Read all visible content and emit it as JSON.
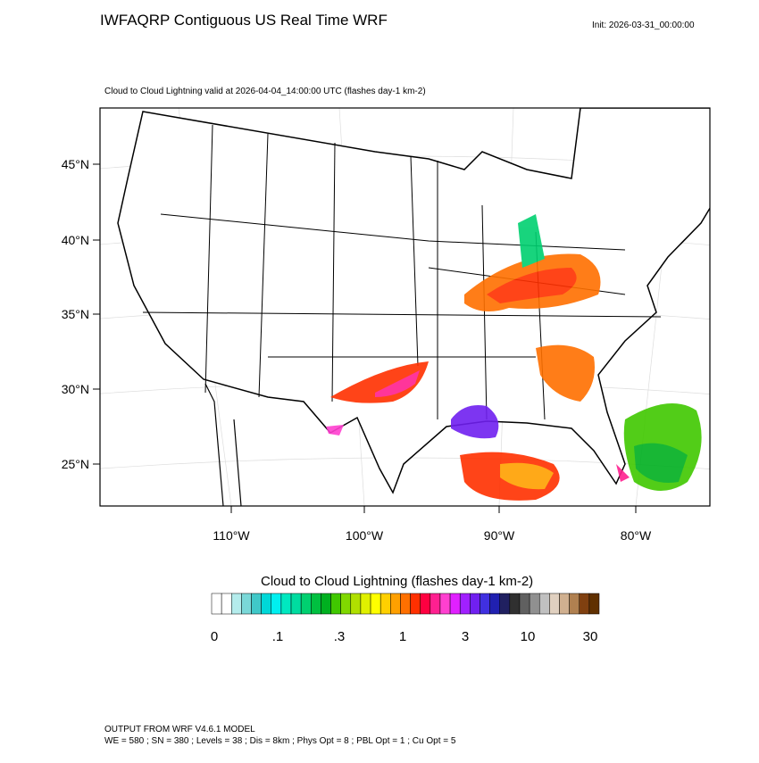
{
  "header": {
    "title": "IWFAQRP Contiguous US Real Time WRF",
    "init": "Init: 2026-03-31_00:00:00",
    "subtitle": "Cloud to Cloud Lightning valid at 2026-04-04_14:00:00 UTC   (flashes day-1 km-2)"
  },
  "map": {
    "lat_labels": [
      "45°N",
      "40°N",
      "35°N",
      "30°N",
      "25°N"
    ],
    "lon_labels": [
      "110°W",
      "100°W",
      "90°W",
      "80°W"
    ]
  },
  "colorbar": {
    "title": "Cloud to Cloud Lightning  (flashes day-1 km-2)",
    "labels": [
      "0",
      ".1",
      ".3",
      "1",
      "3",
      "10",
      "30"
    ],
    "colors": [
      "#ffffff",
      "#ffffff",
      "#b4ecec",
      "#7ad8d8",
      "#40c8c8",
      "#00d8d8",
      "#00f0f0",
      "#00e8c0",
      "#00dca0",
      "#00d070",
      "#00c040",
      "#00b020",
      "#40c800",
      "#80d800",
      "#b0e000",
      "#e0f000",
      "#ffff00",
      "#ffd000",
      "#ffa000",
      "#ff7000",
      "#ff3000",
      "#ff0040",
      "#ff2090",
      "#ff40d0",
      "#e020ff",
      "#a020ff",
      "#7020f0",
      "#4030e0",
      "#2020b0",
      "#202060",
      "#303030",
      "#606060",
      "#909090",
      "#c0c0c0",
      "#e0d0c0",
      "#d0b090",
      "#b08050",
      "#804010",
      "#603000"
    ]
  },
  "footer": {
    "line1": "OUTPUT FROM WRF V4.6.1 MODEL",
    "line2": "WE = 580 ; SN = 380 ; Levels = 38 ; Dis = 8km ; Phys Opt = 8 ; PBL Opt = 1 ; Cu Opt = 5"
  }
}
